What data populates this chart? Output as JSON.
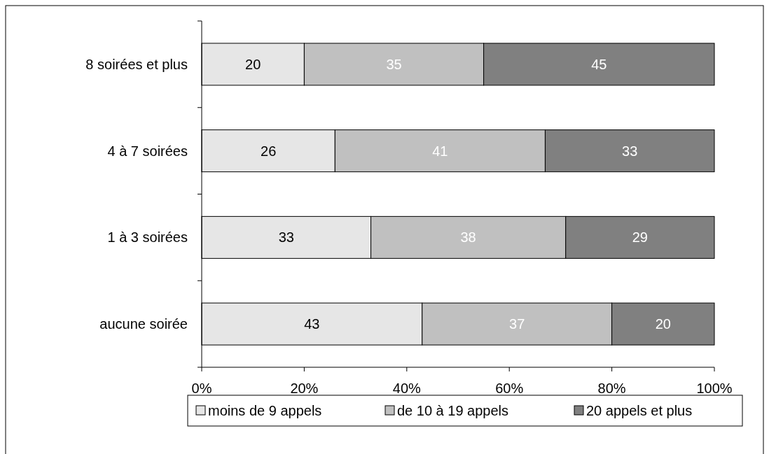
{
  "chart_data": {
    "type": "bar",
    "orientation": "horizontal",
    "stacked": true,
    "categories": [
      "8 soirées et plus",
      "4 à 7 soirées",
      "1 à 3 soirées",
      "aucune soirée"
    ],
    "series": [
      {
        "name": "moins de 9 appels",
        "color": "#e6e6e6",
        "values": [
          20,
          26,
          33,
          43
        ]
      },
      {
        "name": "de 10 à 19 appels",
        "color": "#c0c0c0",
        "values": [
          35,
          41,
          38,
          37
        ]
      },
      {
        "name": "20 appels et plus",
        "color": "#808080",
        "values": [
          45,
          33,
          29,
          20
        ]
      }
    ],
    "xlim": [
      0,
      100
    ],
    "xticks": [
      {
        "value": 0,
        "label": "0%"
      },
      {
        "value": 20,
        "label": "20%"
      },
      {
        "value": 40,
        "label": "40%"
      },
      {
        "value": 60,
        "label": "60%"
      },
      {
        "value": 80,
        "label": "80%"
      },
      {
        "value": 100,
        "label": "100%"
      }
    ],
    "data_labels": true,
    "legend": "bottom",
    "grid": false
  }
}
